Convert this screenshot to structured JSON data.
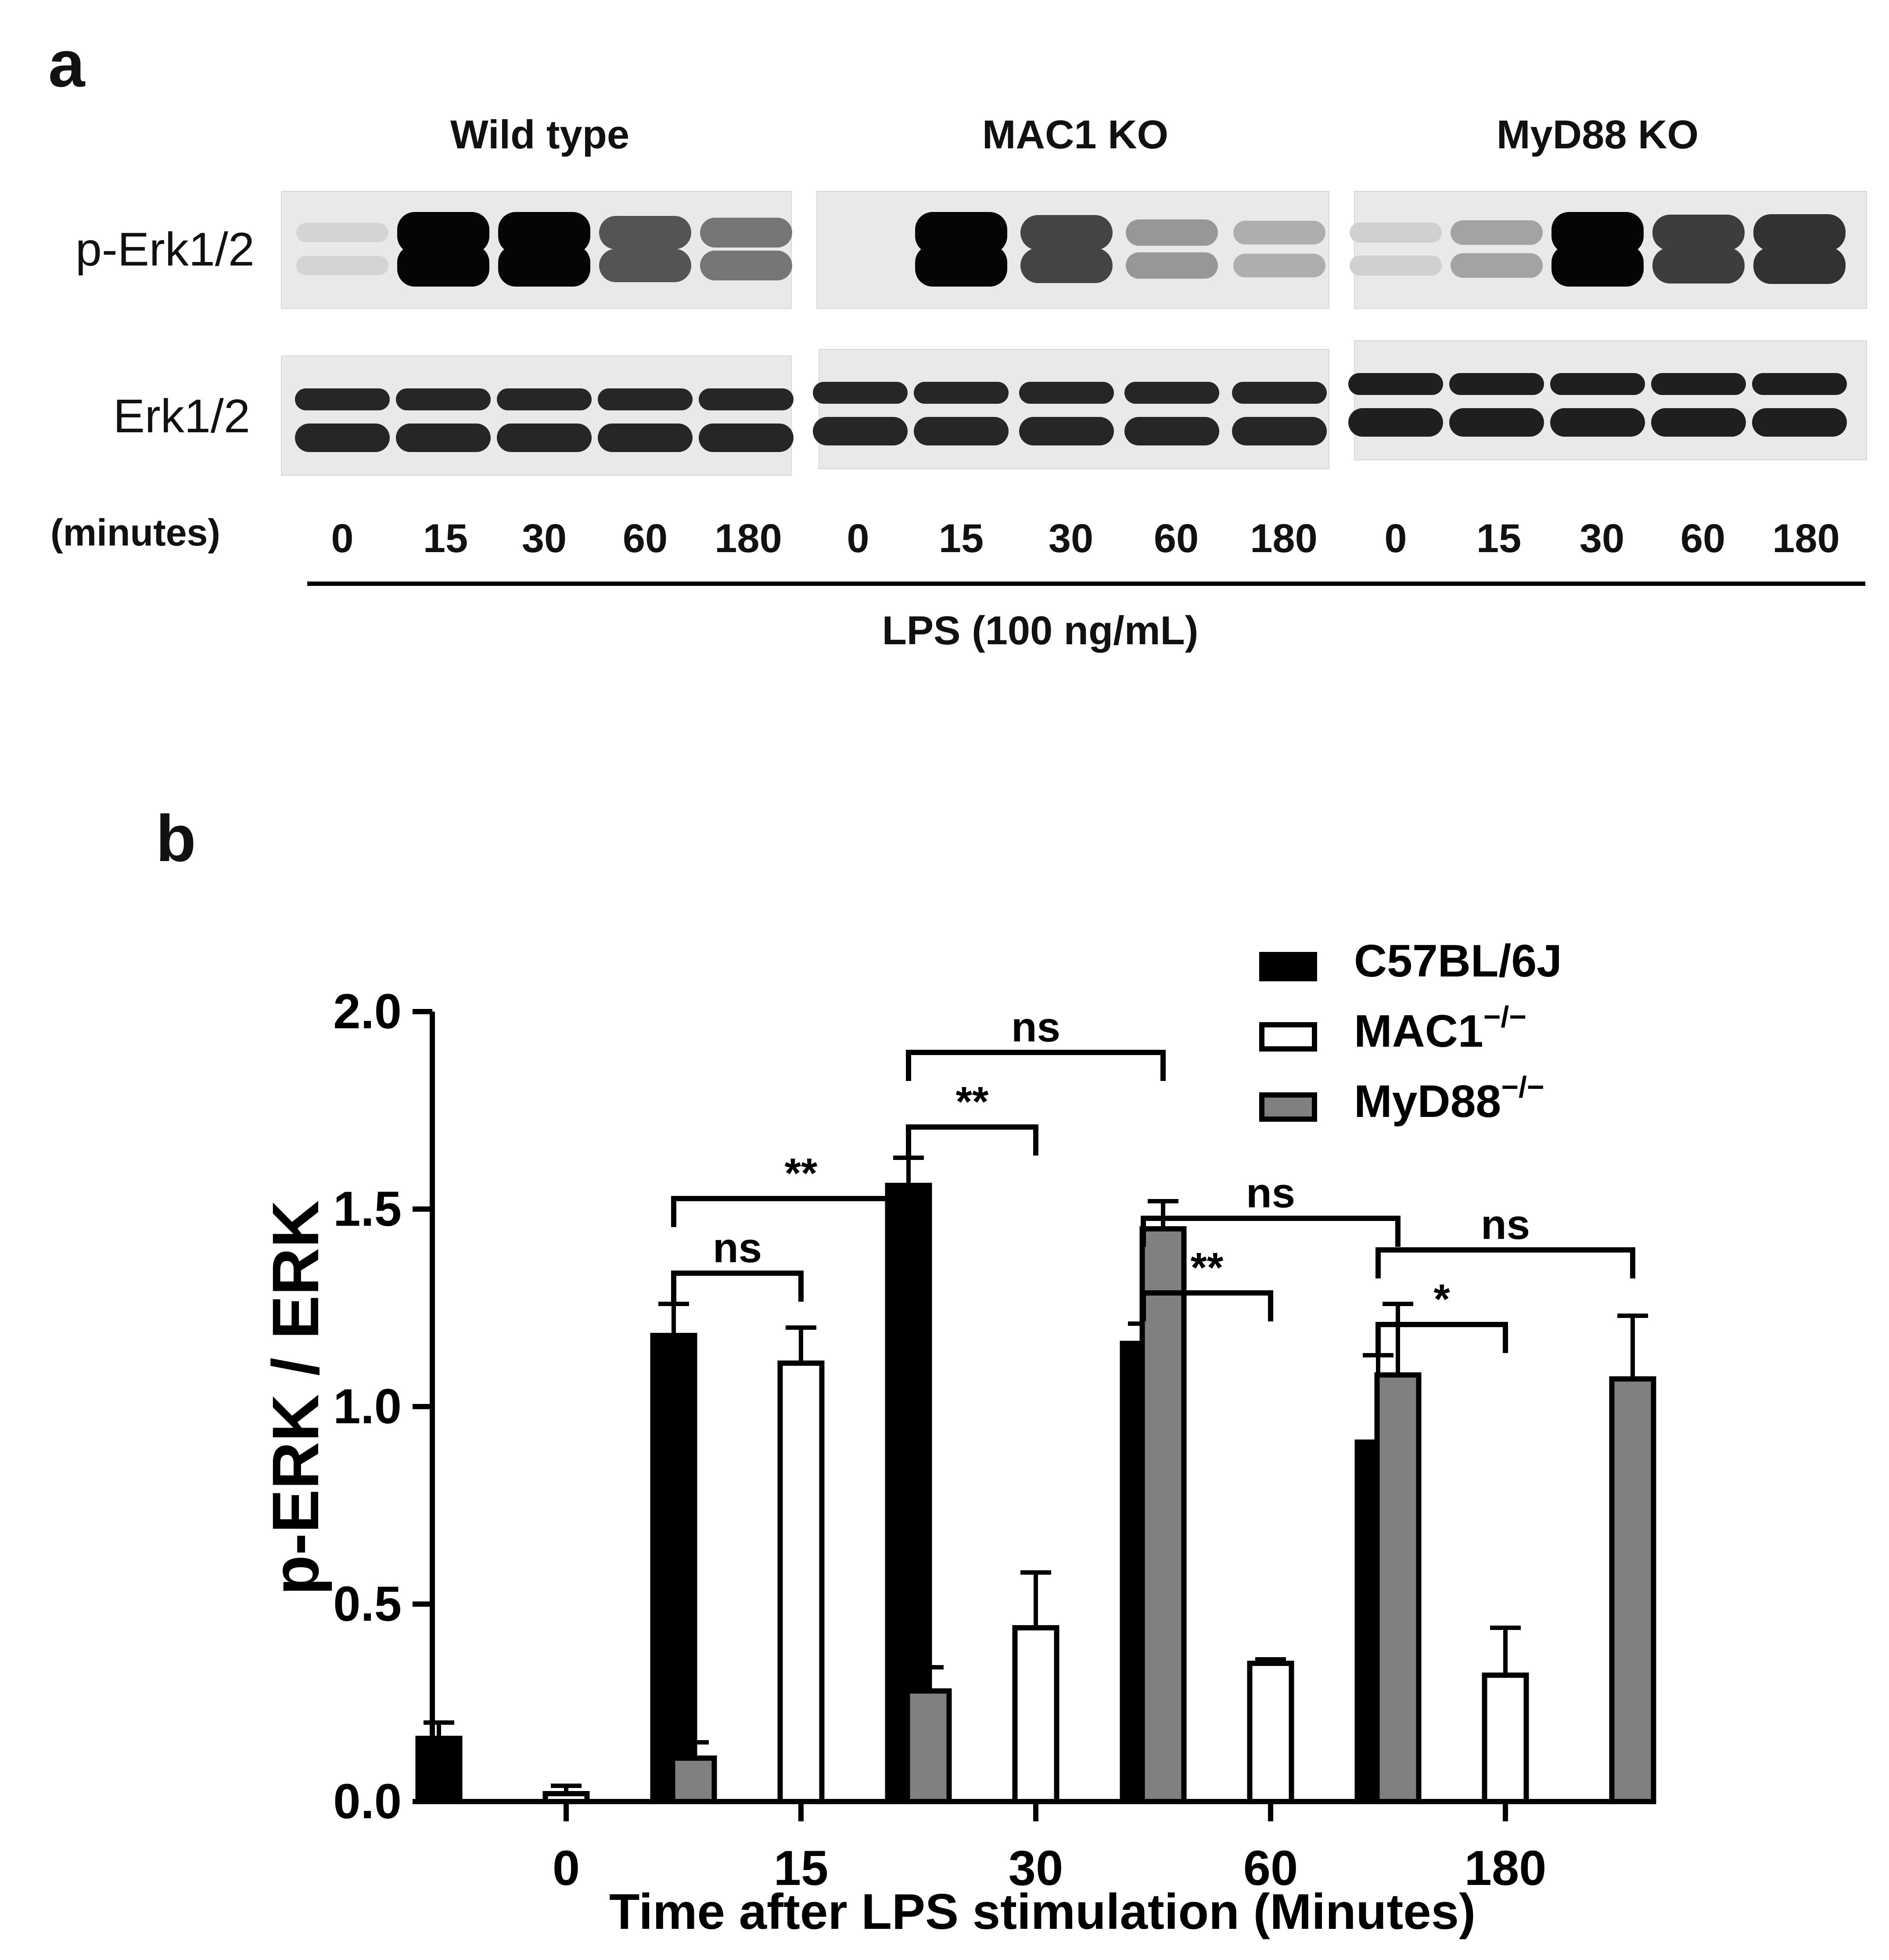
{
  "panel_a": {
    "letter": "a",
    "genotypes": [
      "Wild type",
      "MAC1 KO",
      "MyD88 KO"
    ],
    "row_labels": {
      "phospho": "p-Erk1/2",
      "total": "Erk1/2"
    },
    "minutes_label": "(minutes)",
    "timepoints": [
      "0",
      "15",
      "30",
      "60",
      "180"
    ],
    "treatment_label": "LPS (100 ng/mL)",
    "phospho_intensity": [
      [
        0.08,
        1.0,
        1.0,
        0.65,
        0.5
      ],
      [
        0.0,
        1.0,
        0.72,
        0.35,
        0.25
      ],
      [
        0.1,
        0.3,
        1.0,
        0.75,
        0.8
      ]
    ]
  },
  "panel_b": {
    "letter": "b"
  },
  "chart_data": {
    "type": "bar",
    "xlabel": "Time after LPS stimulation (Minutes)",
    "ylabel": "p-ERK / ERK",
    "categories": [
      "0",
      "15",
      "30",
      "60",
      "180"
    ],
    "ylim": [
      0,
      2.0
    ],
    "yticks": [
      "0.0",
      "0.5",
      "1.0",
      "1.5",
      "2.0"
    ],
    "series": [
      {
        "name": "C57BL/6J",
        "name_sup": "",
        "color": "#000000",
        "values": [
          0.16,
          1.18,
          1.56,
          1.16,
          0.91
        ],
        "errors": [
          0.04,
          0.08,
          0.07,
          0.05,
          0.22
        ]
      },
      {
        "name": "MAC1",
        "name_sup": "−/−",
        "color": "#ffffff",
        "values": [
          0.02,
          1.11,
          0.44,
          0.35,
          0.32
        ],
        "errors": [
          0.02,
          0.09,
          0.14,
          0.01,
          0.12
        ]
      },
      {
        "name": "MyD88",
        "name_sup": "−/−",
        "color": "#808080",
        "values": [
          0.11,
          0.28,
          1.45,
          1.08,
          1.07
        ],
        "errors": [
          0.04,
          0.06,
          0.07,
          0.18,
          0.16
        ]
      }
    ],
    "significance": [
      {
        "category": "15",
        "compare": "MAC1",
        "label": "ns"
      },
      {
        "category": "15",
        "compare": "MyD88",
        "label": "**"
      },
      {
        "category": "30",
        "compare": "MAC1",
        "label": "**"
      },
      {
        "category": "30",
        "compare": "MyD88",
        "label": "ns"
      },
      {
        "category": "60",
        "compare": "MAC1",
        "label": "**"
      },
      {
        "category": "60",
        "compare": "MyD88",
        "label": "ns"
      },
      {
        "category": "180",
        "compare": "MAC1",
        "label": "*"
      },
      {
        "category": "180",
        "compare": "MyD88",
        "label": "ns"
      }
    ],
    "legend_position": "top-right"
  }
}
